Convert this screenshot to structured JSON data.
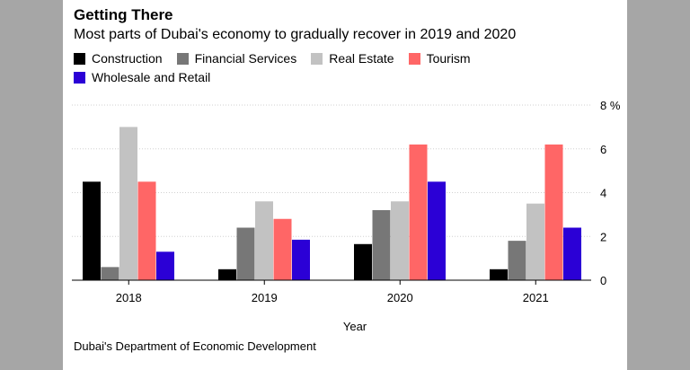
{
  "chart_data": {
    "type": "bar",
    "title": "Getting There",
    "subtitle": "Most parts of Dubai's economy to gradually recover in 2019 and 2020",
    "xlabel": "Year",
    "ylabel": "",
    "categories": [
      "2018",
      "2019",
      "2020",
      "2021"
    ],
    "series": [
      {
        "name": "Construction",
        "color": "#000000",
        "values": [
          4.5,
          0.5,
          1.65,
          0.5
        ]
      },
      {
        "name": "Financial Services",
        "color": "#777777",
        "values": [
          0.6,
          2.4,
          3.2,
          1.8
        ]
      },
      {
        "name": "Real Estate",
        "color": "#c2c2c2",
        "values": [
          7.0,
          3.6,
          3.6,
          3.5
        ]
      },
      {
        "name": "Tourism",
        "color": "#ff6666",
        "values": [
          4.5,
          2.8,
          6.2,
          6.2
        ]
      },
      {
        "name": "Wholesale and Retail",
        "color": "#2b00d6",
        "values": [
          1.3,
          1.85,
          4.5,
          2.4
        ]
      }
    ],
    "ylim": [
      0,
      8
    ],
    "yticks": [
      0,
      2,
      4,
      6,
      8
    ],
    "ytick_labels": [
      "0",
      "2",
      "4",
      "6",
      "8 %"
    ],
    "grid": true,
    "legend_position": "top-left"
  },
  "source": "Dubai's Department of Economic Development"
}
